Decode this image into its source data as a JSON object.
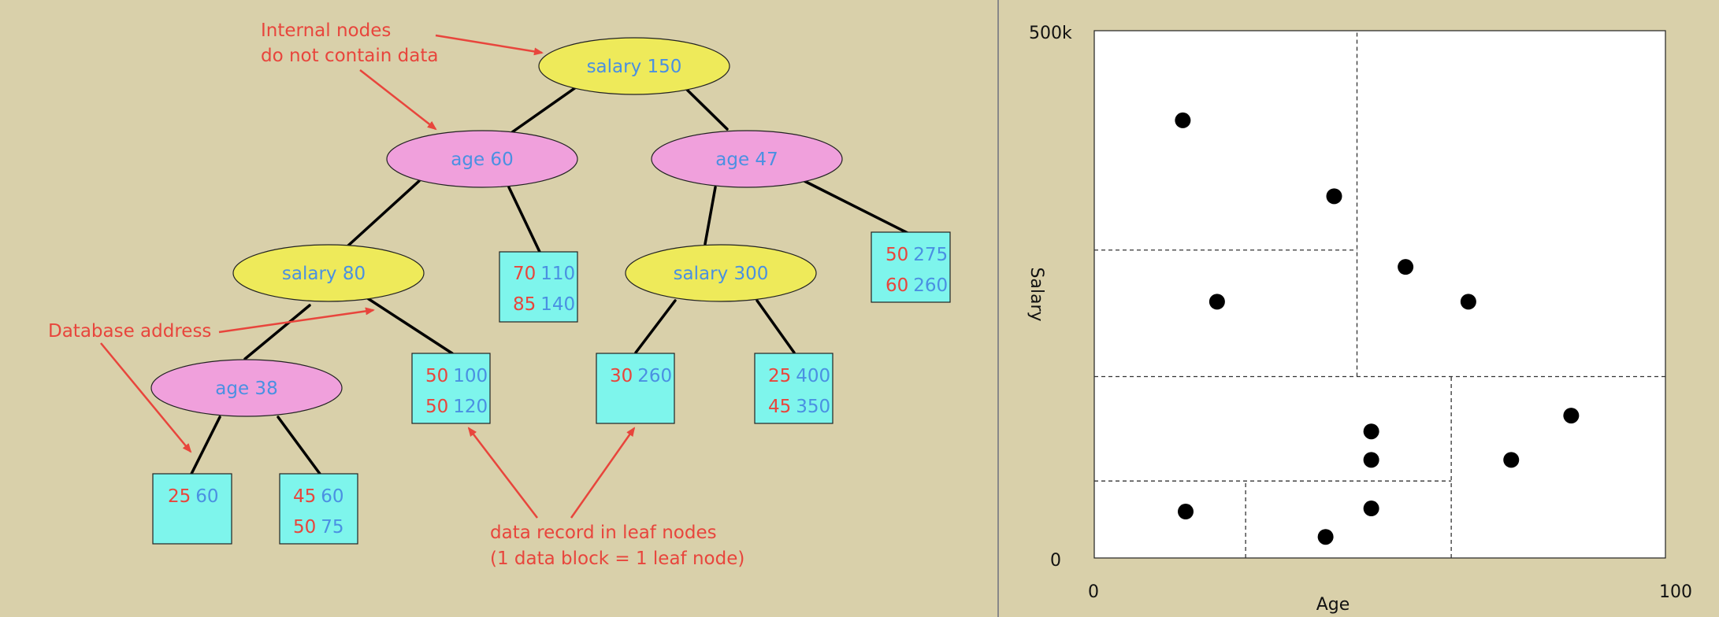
{
  "colors": {
    "background": "#d9d0aa",
    "blue_text": "#4a90e2",
    "red_text": "#e8453c",
    "yellow_node": "#eeea5a",
    "pink_node": "#f0a0dc",
    "cyan_leaf": "#7ef5ec",
    "annotation": "#e8453c"
  },
  "tree": {
    "internal_nodes": [
      {
        "id": "root",
        "label": "salary 150",
        "kind": "salary"
      },
      {
        "id": "l1a",
        "label": "age 60",
        "kind": "age"
      },
      {
        "id": "l1b",
        "label": "age 47",
        "kind": "age"
      },
      {
        "id": "l2a",
        "label": "salary 80",
        "kind": "salary"
      },
      {
        "id": "l2b",
        "label": "salary 300",
        "kind": "salary"
      },
      {
        "id": "l3a",
        "label": "age 38",
        "kind": "age"
      }
    ],
    "leaves": [
      {
        "id": "leaf1",
        "rows": [
          {
            "a": "70",
            "b": "110"
          },
          {
            "a": "85",
            "b": "140"
          }
        ]
      },
      {
        "id": "leaf2",
        "rows": [
          {
            "a": "50",
            "b": "275"
          },
          {
            "a": "60",
            "b": "260"
          }
        ]
      },
      {
        "id": "leaf3",
        "rows": [
          {
            "a": "50",
            "b": "100"
          },
          {
            "a": "50",
            "b": "120"
          }
        ]
      },
      {
        "id": "leaf4",
        "rows": [
          {
            "a": "30",
            "b": "260"
          }
        ]
      },
      {
        "id": "leaf5",
        "rows": [
          {
            "a": "25",
            "b": "400"
          },
          {
            "a": "45",
            "b": "350"
          }
        ]
      },
      {
        "id": "leaf6",
        "rows": [
          {
            "a": "25",
            "b": "60"
          }
        ]
      },
      {
        "id": "leaf7",
        "rows": [
          {
            "a": "45",
            "b": "60"
          },
          {
            "a": "50",
            "b": "75"
          }
        ]
      }
    ]
  },
  "annotations": {
    "internal_line1": "Internal nodes",
    "internal_line2": "do not contain data",
    "database_address": "Database address",
    "leaf_line1": "data record in leaf nodes",
    "leaf_line2": "(1 data block = 1 leaf node)"
  },
  "chart_data": {
    "type": "scatter",
    "xlabel": "Age",
    "ylabel": "Salary",
    "x_tick_min": "0",
    "x_tick_max": "100",
    "y_tick_min": "0",
    "y_tick_max": "500k",
    "xlim": [
      0,
      100
    ],
    "ylim": [
      0,
      500
    ],
    "points": [
      {
        "x": 15.5,
        "y": 415
      },
      {
        "x": 42,
        "y": 343
      },
      {
        "x": 21.5,
        "y": 243
      },
      {
        "x": 54.5,
        "y": 276
      },
      {
        "x": 65.5,
        "y": 243
      },
      {
        "x": 48.5,
        "y": 120
      },
      {
        "x": 48.5,
        "y": 93
      },
      {
        "x": 73,
        "y": 93
      },
      {
        "x": 83.5,
        "y": 135
      },
      {
        "x": 16,
        "y": 44
      },
      {
        "x": 48.5,
        "y": 47
      },
      {
        "x": 40.5,
        "y": 20
      }
    ],
    "partitions": [
      {
        "orient": "vertical",
        "x": 46,
        "y_from": 172,
        "y_to": 500
      },
      {
        "orient": "horizontal",
        "y": 292,
        "x_from": 0,
        "x_to": 46
      },
      {
        "orient": "horizontal",
        "y": 172,
        "x_from": 0,
        "x_to": 100
      },
      {
        "orient": "vertical",
        "x": 62.5,
        "y_from": 0,
        "y_to": 172
      },
      {
        "orient": "horizontal",
        "y": 73,
        "x_from": 0,
        "x_to": 62.5
      },
      {
        "orient": "vertical",
        "x": 26.5,
        "y_from": 0,
        "y_to": 73
      }
    ]
  }
}
